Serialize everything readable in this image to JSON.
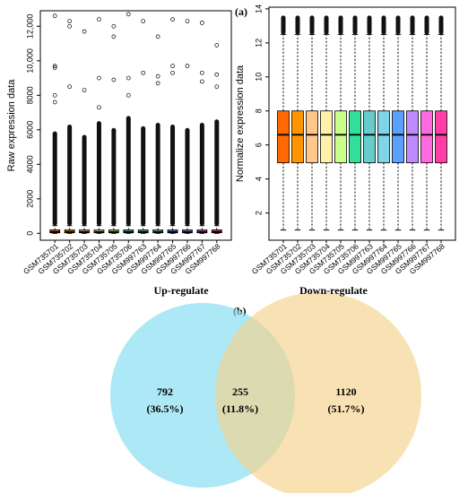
{
  "chart_data": [
    {
      "type": "box",
      "y_label": "Raw expression data",
      "categories": [
        "GSM735701",
        "GSM735702",
        "GSM735703",
        "GSM735704",
        "GSM735705",
        "GSM735706",
        "GSM997763",
        "GSM997764",
        "GSM997765",
        "GSM997766",
        "GSM997767",
        "GSM997768"
      ],
      "ylim": [
        -400,
        12900
      ],
      "yticks": [
        0,
        2000,
        4000,
        6000,
        8000,
        {
          "value": 10000,
          "label": "10,000"
        },
        {
          "value": 12000,
          "label": "12,000"
        }
      ],
      "boxes": [
        {
          "color": "#ff6a00",
          "whisker_low": 0,
          "q1": 30,
          "median": 90,
          "q3": 200,
          "whisker_high": 450,
          "outlier_band": [
            450,
            5800
          ],
          "outliers": [
            12600,
            9700,
            9600,
            8000,
            7600
          ]
        },
        {
          "color": "#ff9500",
          "whisker_low": 0,
          "q1": 30,
          "median": 90,
          "q3": 200,
          "whisker_high": 450,
          "outlier_band": [
            450,
            6200
          ],
          "outliers": [
            12300,
            12000,
            8500
          ]
        },
        {
          "color": "#ffc78a",
          "whisker_low": 0,
          "q1": 30,
          "median": 90,
          "q3": 200,
          "whisker_high": 450,
          "outlier_band": [
            450,
            5600
          ],
          "outliers": [
            11700,
            8300
          ]
        },
        {
          "color": "#fff2a8",
          "whisker_low": 0,
          "q1": 30,
          "median": 90,
          "q3": 200,
          "whisker_high": 450,
          "outlier_band": [
            450,
            6400
          ],
          "outliers": [
            12400,
            9000,
            7300
          ]
        },
        {
          "color": "#c9ff8a",
          "whisker_low": 0,
          "q1": 30,
          "median": 90,
          "q3": 200,
          "whisker_high": 450,
          "outlier_band": [
            450,
            6000
          ],
          "outliers": [
            12000,
            11400,
            8900
          ]
        },
        {
          "color": "#33e09a",
          "whisker_low": 0,
          "q1": 30,
          "median": 90,
          "q3": 200,
          "whisker_high": 450,
          "outlier_band": [
            450,
            6700
          ],
          "outliers": [
            12700,
            9000,
            8000
          ]
        },
        {
          "color": "#66cccc",
          "whisker_low": 0,
          "q1": 30,
          "median": 90,
          "q3": 200,
          "whisker_high": 450,
          "outlier_band": [
            450,
            6100
          ],
          "outliers": [
            12300,
            9300
          ]
        },
        {
          "color": "#7fd4e8",
          "whisker_low": 0,
          "q1": 30,
          "median": 90,
          "q3": 200,
          "whisker_high": 450,
          "outlier_band": [
            450,
            6300
          ],
          "outliers": [
            11400,
            9100,
            8700
          ]
        },
        {
          "color": "#5aa0ff",
          "whisker_low": 0,
          "q1": 30,
          "median": 90,
          "q3": 200,
          "whisker_high": 450,
          "outlier_band": [
            450,
            6200
          ],
          "outliers": [
            12400,
            9700,
            9300
          ]
        },
        {
          "color": "#c08aff",
          "whisker_low": 0,
          "q1": 30,
          "median": 90,
          "q3": 200,
          "whisker_high": 450,
          "outlier_band": [
            450,
            6000
          ],
          "outliers": [
            12300,
            9700
          ]
        },
        {
          "color": "#ff6adf",
          "whisker_low": 0,
          "q1": 30,
          "median": 90,
          "q3": 200,
          "whisker_high": 450,
          "outlier_band": [
            450,
            6300
          ],
          "outliers": [
            12200,
            9300,
            8800
          ]
        },
        {
          "color": "#ff3fa6",
          "whisker_low": 0,
          "q1": 30,
          "median": 90,
          "q3": 200,
          "whisker_high": 450,
          "outlier_band": [
            450,
            6500
          ],
          "outliers": [
            10900,
            9200,
            8500
          ]
        }
      ]
    },
    {
      "type": "box",
      "y_label": "Normalize expression data",
      "panel_label": "(a)",
      "categories": [
        "GSM735701",
        "GSM735702",
        "GSM735703",
        "GSM735704",
        "GSM735705",
        "GSM735706",
        "GSM997763",
        "GSM997764",
        "GSM997765",
        "GSM997766",
        "GSM997767",
        "GSM997768"
      ],
      "ylim": [
        0.4,
        14.1
      ],
      "yticks": [
        2,
        4,
        6,
        8,
        10,
        12,
        14
      ],
      "boxes": [
        {
          "color": "#ff6a00",
          "whisker_low": 1.0,
          "q1": 4.95,
          "median": 6.6,
          "q3": 8.0,
          "whisker_high": 12.5,
          "outlier_band": [
            12.5,
            13.5
          ]
        },
        {
          "color": "#ff9500",
          "whisker_low": 1.0,
          "q1": 4.95,
          "median": 6.6,
          "q3": 8.0,
          "whisker_high": 12.5,
          "outlier_band": [
            12.5,
            13.5
          ]
        },
        {
          "color": "#ffc78a",
          "whisker_low": 1.0,
          "q1": 4.95,
          "median": 6.6,
          "q3": 8.0,
          "whisker_high": 12.5,
          "outlier_band": [
            12.5,
            13.5
          ]
        },
        {
          "color": "#fff2a8",
          "whisker_low": 1.0,
          "q1": 4.95,
          "median": 6.6,
          "q3": 8.0,
          "whisker_high": 12.5,
          "outlier_band": [
            12.5,
            13.5
          ]
        },
        {
          "color": "#c9ff8a",
          "whisker_low": 1.0,
          "q1": 4.95,
          "median": 6.6,
          "q3": 8.0,
          "whisker_high": 12.5,
          "outlier_band": [
            12.5,
            13.5
          ]
        },
        {
          "color": "#33e09a",
          "whisker_low": 1.0,
          "q1": 4.95,
          "median": 6.6,
          "q3": 8.0,
          "whisker_high": 12.5,
          "outlier_band": [
            12.5,
            13.5
          ]
        },
        {
          "color": "#66cccc",
          "whisker_low": 1.0,
          "q1": 4.95,
          "median": 6.6,
          "q3": 8.0,
          "whisker_high": 12.5,
          "outlier_band": [
            12.5,
            13.5
          ]
        },
        {
          "color": "#7fd4e8",
          "whisker_low": 1.0,
          "q1": 4.95,
          "median": 6.6,
          "q3": 8.0,
          "whisker_high": 12.5,
          "outlier_band": [
            12.5,
            13.5
          ]
        },
        {
          "color": "#5aa0ff",
          "whisker_low": 1.0,
          "q1": 4.95,
          "median": 6.6,
          "q3": 8.0,
          "whisker_high": 12.5,
          "outlier_band": [
            12.5,
            13.5
          ]
        },
        {
          "color": "#c08aff",
          "whisker_low": 1.0,
          "q1": 4.95,
          "median": 6.6,
          "q3": 8.0,
          "whisker_high": 12.5,
          "outlier_band": [
            12.5,
            13.5
          ]
        },
        {
          "color": "#ff6adf",
          "whisker_low": 1.0,
          "q1": 4.95,
          "median": 6.6,
          "q3": 8.0,
          "whisker_high": 12.5,
          "outlier_band": [
            12.5,
            13.5
          ]
        },
        {
          "color": "#ff3fa6",
          "whisker_low": 1.0,
          "q1": 4.95,
          "median": 6.6,
          "q3": 8.0,
          "whisker_high": 12.5,
          "outlier_band": [
            12.5,
            13.5
          ]
        }
      ]
    },
    {
      "type": "venn",
      "panel_label": "(b)",
      "sets": [
        {
          "name": "Up-regulate",
          "color": "#7fdcf0"
        },
        {
          "name": "Down-regulate",
          "color": "#f5d28a"
        }
      ],
      "values": [
        792,
        255,
        1120
      ],
      "region_labels": [
        "(36.5%)",
        "(11.8%)",
        "(51.7%)"
      ]
    }
  ]
}
